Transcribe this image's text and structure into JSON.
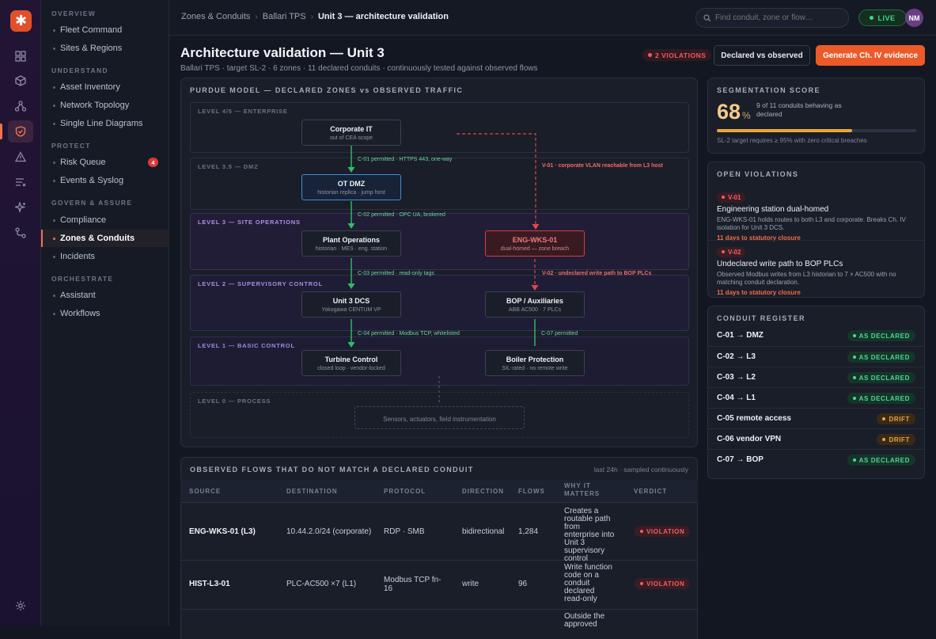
{
  "app": {
    "logo_glyph": "✱",
    "brand_color": "#ec5a2a"
  },
  "rail": {
    "icons": [
      "grid-icon",
      "cube-icon",
      "network-icon",
      "shield-icon",
      "alert-icon",
      "list-icon",
      "sparkle-icon",
      "route-icon",
      "settings-icon"
    ]
  },
  "nav": {
    "sections": [
      {
        "label": "OVERVIEW",
        "items": [
          "Fleet Command",
          "Sites & Regions"
        ]
      },
      {
        "label": "UNDERSTAND",
        "items": [
          "Asset Inventory",
          "Network Topology",
          "Single Line Diagrams"
        ]
      },
      {
        "label": "PROTECT",
        "items": [
          "Risk Queue",
          "Events & Syslog"
        ]
      },
      {
        "label": "GOVERN & ASSURE",
        "items": [
          "Compliance",
          "Zones & Conduits",
          "Incidents"
        ]
      },
      {
        "label": "ORCHESTRATE",
        "items": [
          "Assistant",
          "Workflows"
        ]
      }
    ],
    "risk_badge": "4"
  },
  "topbar": {
    "breadcrumb": [
      "Zones & Conduits",
      "Ballari TPS",
      "Unit 3 — architecture validation"
    ],
    "search_placeholder": "Find conduit, zone or flow…",
    "live_label": "LIVE",
    "avatar_initials": "NM"
  },
  "page": {
    "title": "Architecture validation — Unit 3",
    "subtitle": "Ballari TPS · target SL-2 · 6 zones · 11 declared conduits · continuously tested against observed flows",
    "violations_badge": "2 VIOLATIONS",
    "btn_declared": "Declared vs observed",
    "btn_generate": "Generate Ch. IV evidence"
  },
  "purdue": {
    "title": "PURDUE MODEL — DECLARED ZONES vs OBSERVED TRAFFIC",
    "levels": [
      "LEVEL 4/5 — ENTERPRISE",
      "LEVEL 3.5 — DMZ",
      "LEVEL 3 — SITE OPERATIONS",
      "LEVEL 2 — SUPERVISORY CONTROL",
      "LEVEL 1 — BASIC CONTROL",
      "LEVEL 0 — PROCESS"
    ],
    "nodes": {
      "corp": {
        "title": "Corporate IT",
        "sub": "out of CEA scope"
      },
      "dmz": {
        "title": "OT DMZ",
        "sub": "historian replica · jump host"
      },
      "plant": {
        "title": "Plant Operations",
        "sub": "historian · MES · eng. station"
      },
      "engwks": {
        "title": "ENG-WKS-01",
        "sub": "dual-homed — zone breach"
      },
      "dcs": {
        "title": "Unit 3 DCS",
        "sub": "Yokogawa CENTUM VP"
      },
      "bop": {
        "title": "BOP / Auxiliaries",
        "sub": "ABB AC500 · 7 PLCs"
      },
      "turbine": {
        "title": "Turbine Control",
        "sub": "closed loop · vendor-locked"
      },
      "boiler": {
        "title": "Boiler Protection",
        "sub": "SIL-rated · no remote write"
      },
      "sensors": {
        "title": "Sensors, actuators, field instrumentation"
      }
    },
    "edges": {
      "c01": "C-01 permitted · HTTPS 443, one-way",
      "v01": "V-01 · corporate VLAN reachable from L3 host",
      "c02": "C-02 permitted · OPC UA, brokered",
      "c03": "C-03 permitted · read-only tags",
      "v02": "V-02 · undeclared write path to BOP PLCs",
      "c04": "C-04 permitted · Modbus TCP, whitelisted",
      "c07": "C-07 permitted"
    },
    "colors": {
      "permitted": "#2fbf6a",
      "violation": "#e04848"
    }
  },
  "flows": {
    "title": "OBSERVED FLOWS THAT DO NOT MATCH A DECLARED CONDUIT",
    "meta": "last 24h · sampled continuously",
    "columns": [
      "SOURCE",
      "DESTINATION",
      "PROTOCOL",
      "DIRECTION",
      "FLOWS",
      "WHY IT MATTERS",
      "VERDICT"
    ],
    "rows": [
      {
        "source": "ENG-WKS-01 (L3)",
        "destination": "10.44.2.0/24 (corporate)",
        "protocol": "RDP · SMB",
        "direction": "bidirectional",
        "flows": "1,284",
        "why": "Creates a routable path from enterprise into Unit 3 supervisory control",
        "verdict": "VIOLATION"
      },
      {
        "source": "HIST-L3-01",
        "destination": "PLC-AC500 ×7 (L1)",
        "protocol": "Modbus TCP fn-16",
        "direction": "write",
        "flows": "96",
        "why": "Write function code on a conduit declared read-only",
        "verdict": "VIOLATION"
      },
      {
        "source": "",
        "destination": "",
        "protocol": "",
        "direction": "",
        "flows": "",
        "why": "Outside the approved",
        "verdict": ""
      }
    ]
  },
  "score": {
    "title": "SEGMENTATION SCORE",
    "value": "68",
    "unit": "%",
    "desc": "9 of 11 conduits behaving as declared",
    "progress": 0.68,
    "note": "SL-2 target requires ≥ 95% with zero critical breaches"
  },
  "violations": {
    "title": "OPEN VIOLATIONS",
    "items": [
      {
        "id": "V-01",
        "title": "Engineering station dual-homed",
        "desc": "ENG-WKS-01 holds routes to both L3 and corporate. Breaks Ch. IV isolation for Unit 3 DCS.",
        "due": "11 days to statutory closure"
      },
      {
        "id": "V-02",
        "title": "Undeclared write path to BOP PLCs",
        "desc": "Observed Modbus writes from L3 historian to 7 × AC500 with no matching conduit declaration.",
        "due": "11 days to statutory closure"
      }
    ]
  },
  "register": {
    "title": "CONDUIT REGISTER",
    "rows": [
      {
        "name": "C-01 → DMZ",
        "status": "AS DECLARED",
        "kind": "ok"
      },
      {
        "name": "C-02 → L3",
        "status": "AS DECLARED",
        "kind": "ok"
      },
      {
        "name": "C-03 → L2",
        "status": "AS DECLARED",
        "kind": "ok"
      },
      {
        "name": "C-04 → L1",
        "status": "AS DECLARED",
        "kind": "ok"
      },
      {
        "name": "C-05 remote access",
        "status": "DRIFT",
        "kind": "dr"
      },
      {
        "name": "C-06 vendor VPN",
        "status": "DRIFT",
        "kind": "dr"
      },
      {
        "name": "C-07 → BOP",
        "status": "AS DECLARED",
        "kind": "ok"
      }
    ]
  }
}
